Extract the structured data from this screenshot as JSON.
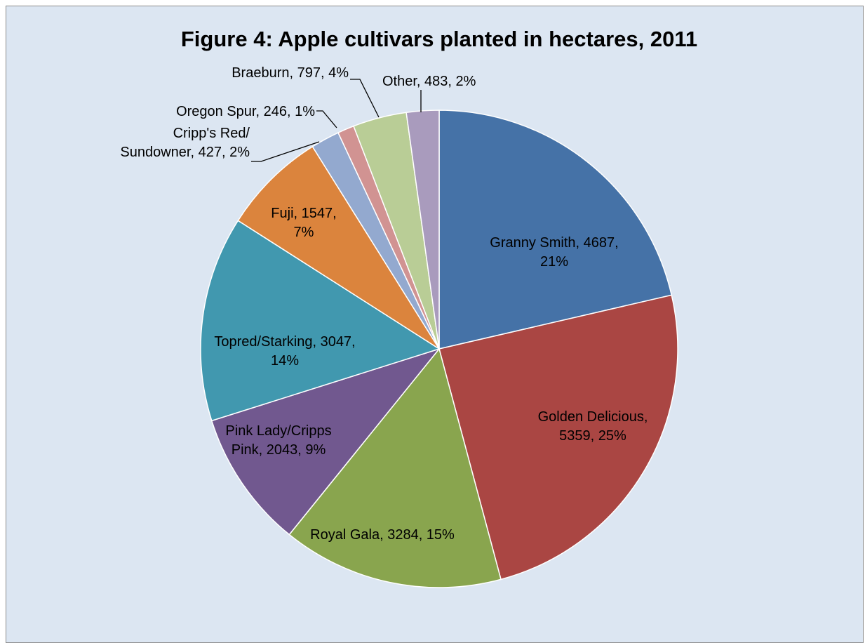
{
  "chart_data": {
    "type": "pie",
    "title": "Figure 4: Apple cultivars planted in hectares, 2011",
    "slices": [
      {
        "name": "Granny Smith",
        "value": 4687,
        "percent": "21%",
        "label_lines": [
          "Granny Smith, 4687,",
          "21%"
        ],
        "color": "#4572a7"
      },
      {
        "name": "Golden Delicious",
        "value": 5359,
        "percent": "25%",
        "label_lines": [
          "Golden Delicious,",
          "5359, 25%"
        ],
        "color": "#aa4643"
      },
      {
        "name": "Royal Gala",
        "value": 3284,
        "percent": "15%",
        "label_lines": [
          "Royal Gala, 3284, 15%"
        ],
        "color": "#89a54e"
      },
      {
        "name": "Pink Lady/Cripps Pink",
        "value": 2043,
        "percent": "9%",
        "label_lines": [
          "Pink Lady/Cripps",
          "Pink, 2043, 9%"
        ],
        "color": "#71588f"
      },
      {
        "name": "Topred/Starking",
        "value": 3047,
        "percent": "14%",
        "label_lines": [
          "Topred/Starking, 3047,",
          "14%"
        ],
        "color": "#4198af"
      },
      {
        "name": "Fuji",
        "value": 1547,
        "percent": "7%",
        "label_lines": [
          "Fuji, 1547,",
          "7%"
        ],
        "color": "#db843d"
      },
      {
        "name": "Cripp's Red/Sundowner",
        "value": 427,
        "percent": "2%",
        "label_lines": [
          "Cripp's Red/",
          "Sundowner, 427, 2%"
        ],
        "color": "#93a9cf"
      },
      {
        "name": "Oregon Spur",
        "value": 246,
        "percent": "1%",
        "label_lines": [
          "Oregon Spur, 246, 1%"
        ],
        "color": "#d19392"
      },
      {
        "name": "Braeburn",
        "value": 797,
        "percent": "4%",
        "label_lines": [
          "Braeburn, 797, 4%"
        ],
        "color": "#b9cd96"
      },
      {
        "name": "Other",
        "value": 483,
        "percent": "2%",
        "label_lines": [
          "Other, 483, 2%"
        ],
        "color": "#a99bbd"
      }
    ]
  }
}
